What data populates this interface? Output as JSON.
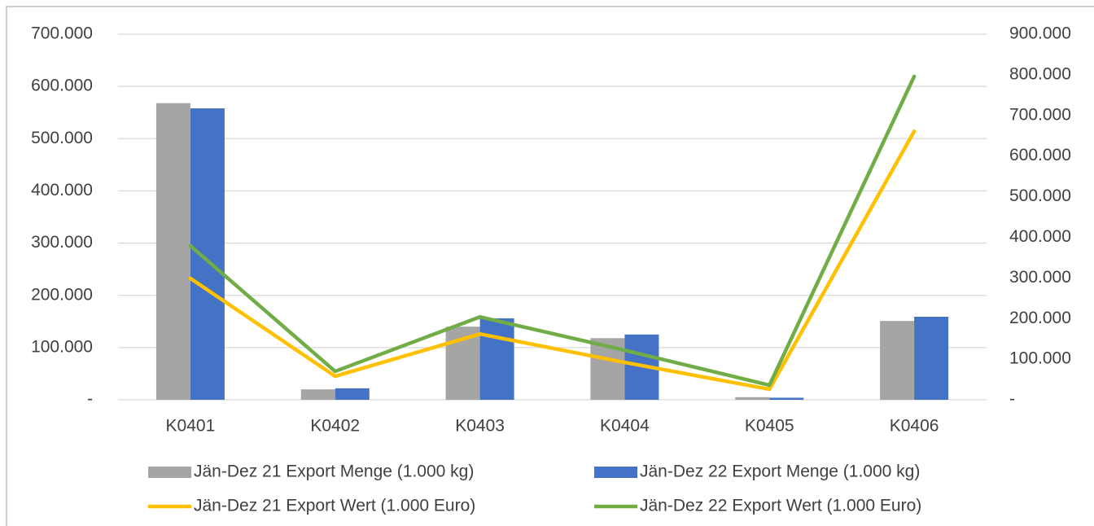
{
  "chart_data": {
    "type": "bar",
    "categories": [
      "K0401",
      "K0402",
      "K0403",
      "K0404",
      "K0405",
      "K0406"
    ],
    "series": [
      {
        "name": "Jän-Dez 21 Export Menge (1.000 kg)",
        "color": "#a5a5a5",
        "type": "bar",
        "axis": "y",
        "values": [
          568000,
          20000,
          140000,
          118000,
          5000,
          151000
        ]
      },
      {
        "name": "Jän-Dez 22 Export Menge (1.000 kg)",
        "color": "#4472c4",
        "type": "bar",
        "axis": "y",
        "values": [
          558000,
          22000,
          156000,
          125000,
          4000,
          159000
        ]
      },
      {
        "name": "Jän-Dez 21 Export Wert (1.000 Euro)",
        "color": "#ffc000",
        "type": "line",
        "axis": "y2",
        "values": [
          299000,
          58000,
          162000,
          92000,
          26000,
          661000
        ]
      },
      {
        "name": "Jän-Dez 22 Export Wert (1.000 Euro)",
        "color": "#70ad47",
        "type": "line",
        "axis": "y2",
        "values": [
          379000,
          70000,
          204000,
          122000,
          36000,
          796000
        ]
      }
    ],
    "ylim": [
      0,
      700000
    ],
    "yticks": [
      {
        "value": 0,
        "label": "-"
      },
      {
        "value": 100000,
        "label": "100.000"
      },
      {
        "value": 200000,
        "label": "200.000"
      },
      {
        "value": 300000,
        "label": "300.000"
      },
      {
        "value": 400000,
        "label": "400.000"
      },
      {
        "value": 500000,
        "label": "500.000"
      },
      {
        "value": 600000,
        "label": "600.000"
      },
      {
        "value": 700000,
        "label": "700.000"
      }
    ],
    "y2lim": [
      0,
      900000
    ],
    "y2ticks": [
      {
        "value": 0,
        "label": "-"
      },
      {
        "value": 100000,
        "label": "100.000"
      },
      {
        "value": 200000,
        "label": "200.000"
      },
      {
        "value": 300000,
        "label": "300.000"
      },
      {
        "value": 400000,
        "label": "400.000"
      },
      {
        "value": 500000,
        "label": "500.000"
      },
      {
        "value": 600000,
        "label": "600.000"
      },
      {
        "value": 700000,
        "label": "700.000"
      },
      {
        "value": 800000,
        "label": "800.000"
      },
      {
        "value": 900000,
        "label": "900.000"
      }
    ],
    "grid": true,
    "legend": "bottom"
  }
}
